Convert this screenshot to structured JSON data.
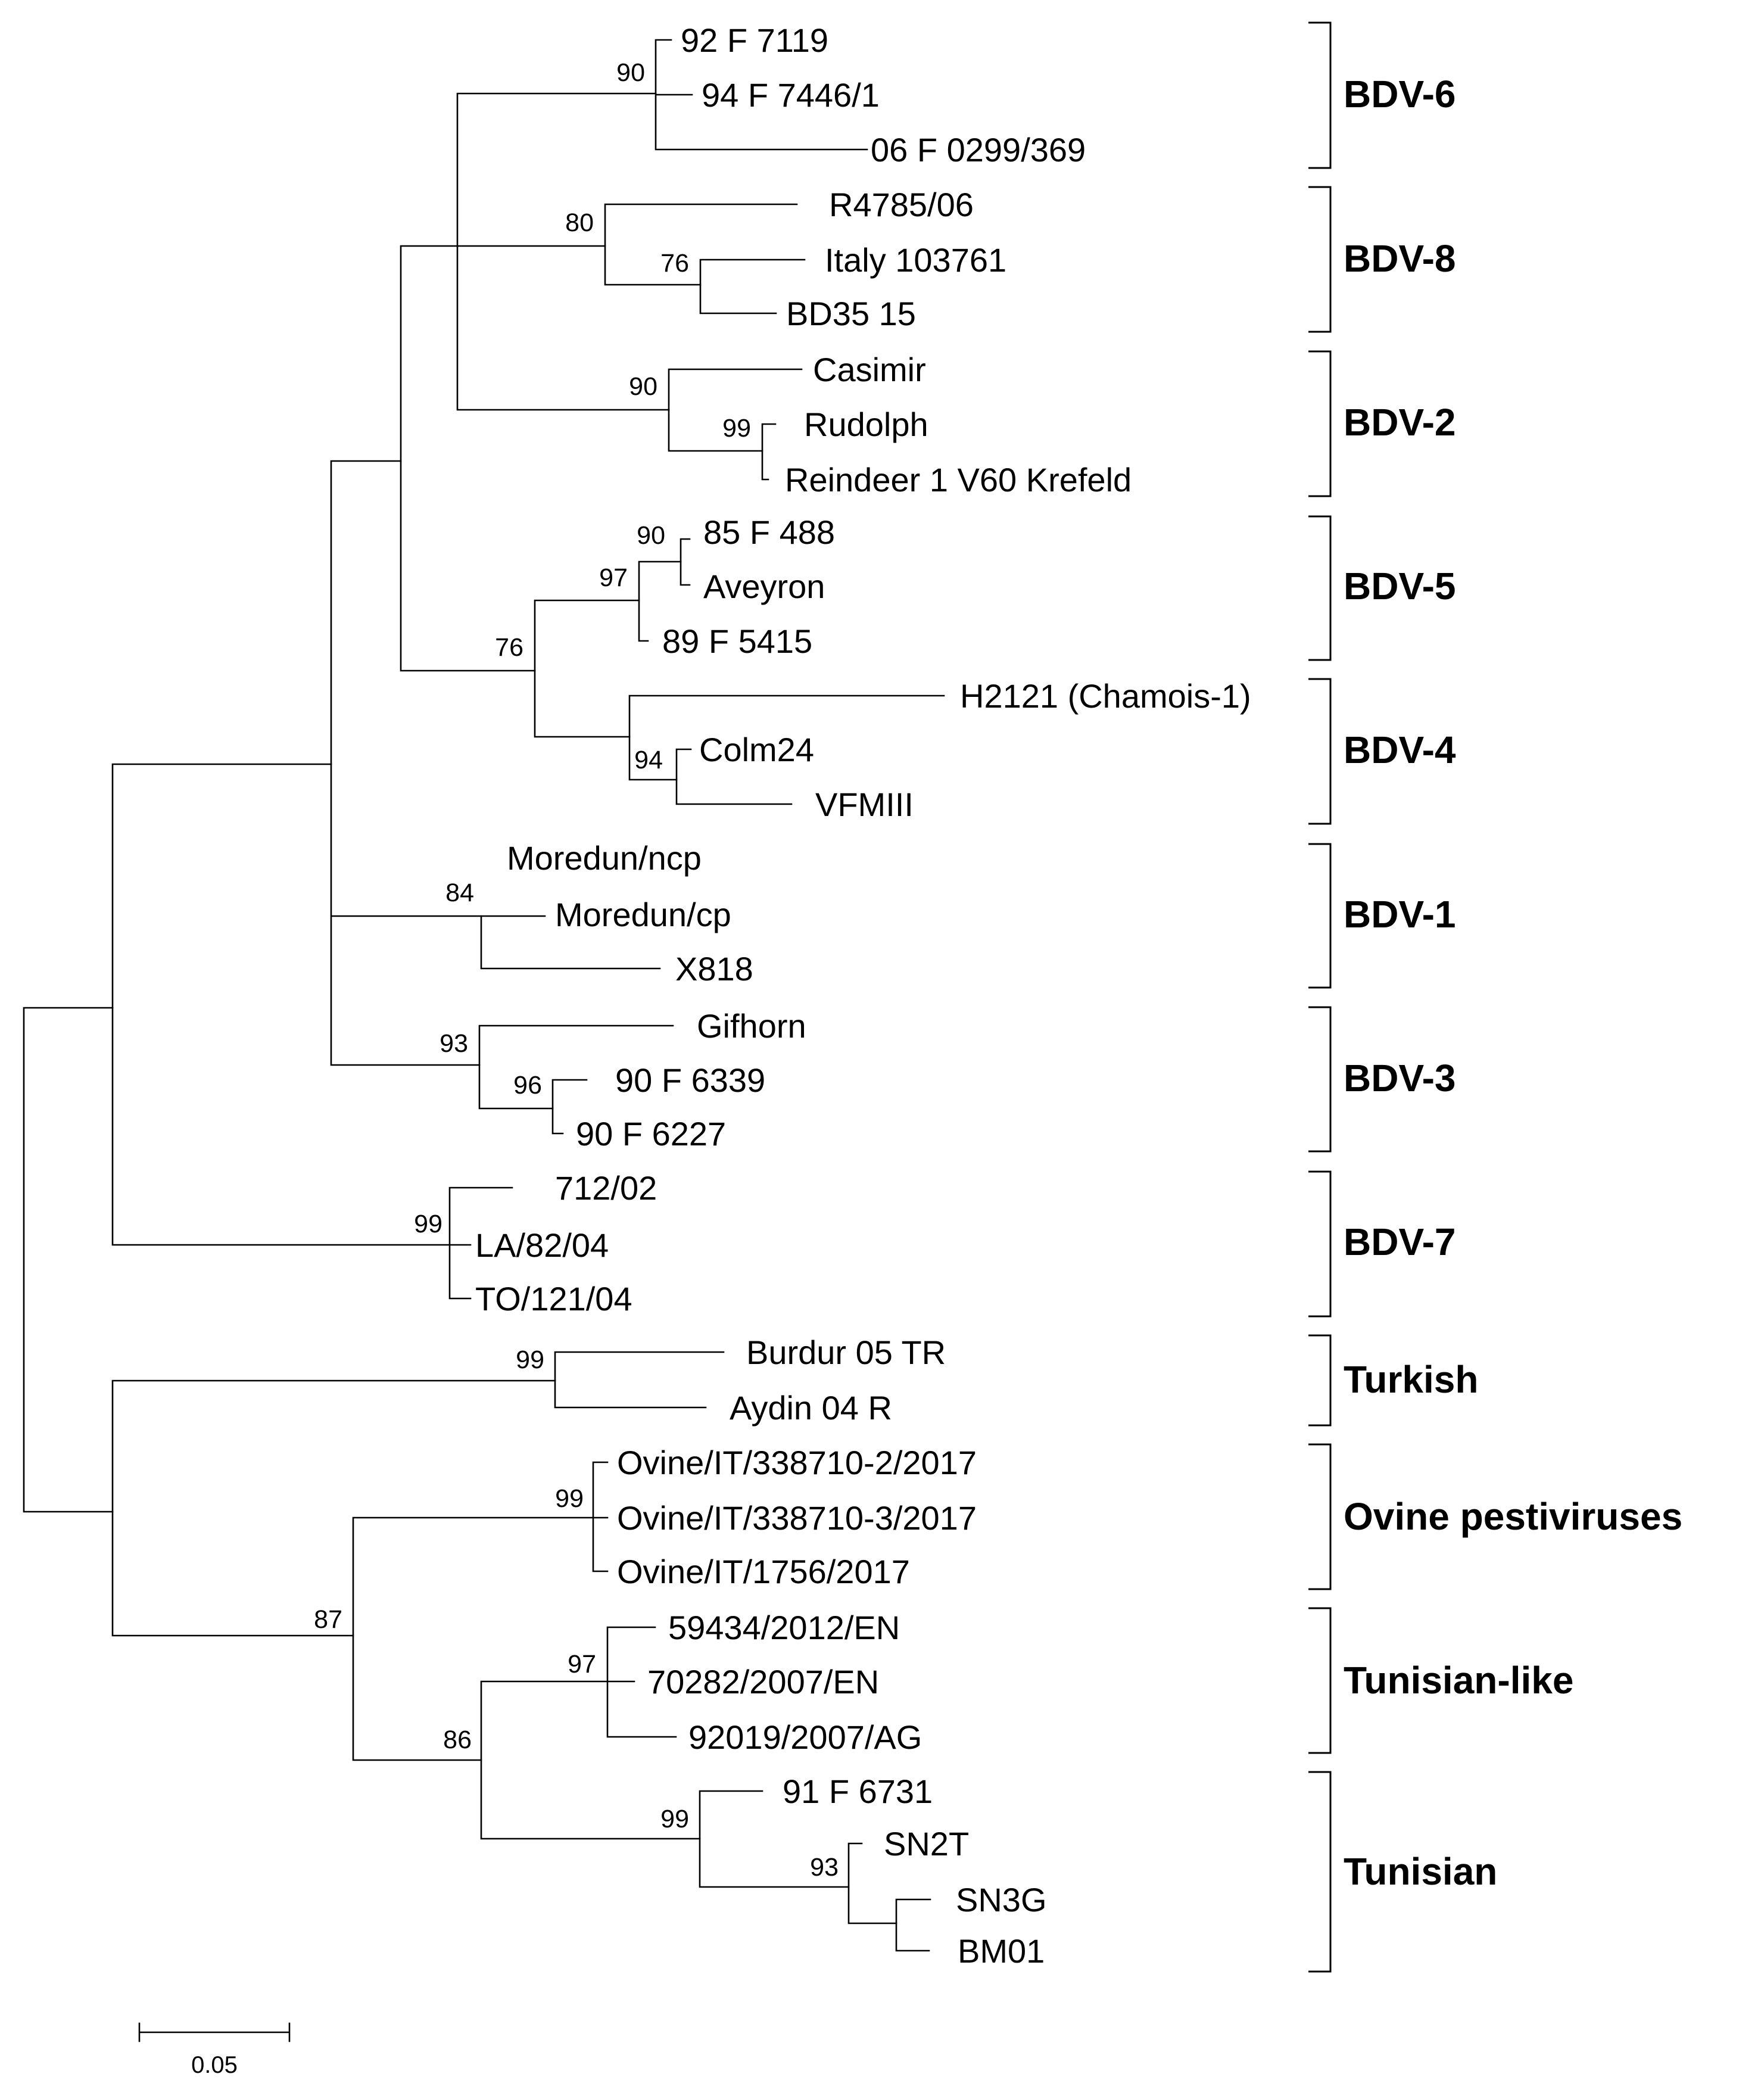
{
  "figure": {
    "type": "phylogenetic-tree",
    "scale_bar_label": "0.05"
  },
  "leaves": [
    "92 F 7119",
    "94 F 7446/1",
    "06 F 0299/369",
    "R4785/06",
    "Italy 103761",
    "BD35 15",
    "Casimir",
    "Rudolph",
    "Reindeer 1 V60 Krefeld",
    "85 F 488",
    "Aveyron",
    "89 F 5415",
    "H2121 (Chamois-1)",
    "Colm24",
    "VFMIII",
    "Moredun/ncp",
    "Moredun/cp",
    "X818",
    "Gifhorn",
    "90 F 6339",
    "90 F 6227",
    "712/02",
    "LA/82/04",
    "TO/121/04",
    "Burdur 05 TR",
    "Aydin 04 R",
    "Ovine/IT/338710-2/2017",
    "Ovine/IT/338710-3/2017",
    "Ovine/IT/1756/2017",
    "59434/2012/EN",
    "70282/2007/EN",
    "92019/2007/AG",
    "91 F 6731",
    "SN2T",
    "SN3G",
    "BM01"
  ],
  "bootstraps": [
    "90",
    "80",
    "76",
    "90",
    "99",
    "90",
    "97",
    "76",
    "94",
    "84",
    "93",
    "96",
    "99",
    "99",
    "99",
    "97",
    "87",
    "86",
    "99",
    "93"
  ],
  "clades": [
    "BDV-6",
    "BDV-8",
    "BDV-2",
    "BDV-5",
    "BDV-4",
    "BDV-1",
    "BDV-3",
    "BDV-7",
    "Turkish",
    "Ovine pestiviruses",
    "Tunisian-like",
    "Tunisian"
  ]
}
